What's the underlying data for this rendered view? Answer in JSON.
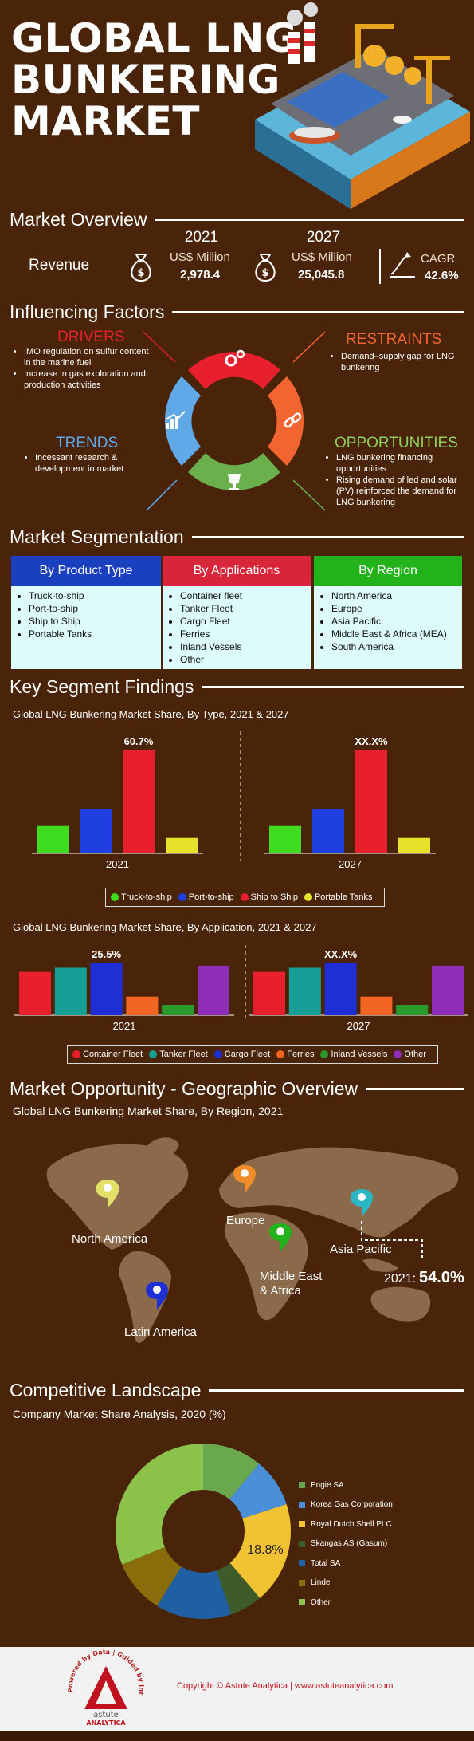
{
  "title_lines": [
    "GLOBAL LNG",
    "BUNKERING",
    "MARKET"
  ],
  "market_overview": {
    "heading": "Market Overview",
    "revenue_label": "Revenue",
    "year_start": "2021",
    "unit_start": "US$ Million",
    "value_start": "2,978.4",
    "year_end": "2027",
    "unit_end": "US$ Million",
    "value_end": "25,045.8",
    "cagr_label": "CAGR",
    "cagr_value": "42.6%"
  },
  "influencing_factors": {
    "heading": "Influencing Factors",
    "drivers": {
      "title": "DRIVERS",
      "items": [
        "IMO regulation on sulfur content in the marine fuel",
        "Increase in gas exploration and production activities"
      ]
    },
    "restraints": {
      "title": "RESTRAINTS",
      "items": [
        "Demand–supply gap for LNG bunkering"
      ]
    },
    "trends": {
      "title": "TRENDS",
      "items": [
        "Incessant research & development in market"
      ]
    },
    "opportunities": {
      "title": "OPPORTUNITIES",
      "items": [
        "LNG bunkering financing opportunities",
        "Rising demand of led and solar (PV) reinforced the demand for LNG bunkering"
      ]
    },
    "colors": {
      "drivers": "#e8202e",
      "restraints": "#f26530",
      "trends": "#5fa9e8",
      "opportunities": "#6ab04c"
    }
  },
  "segmentation": {
    "heading": "Market Segmentation",
    "boxes": [
      {
        "title": "By Product Type",
        "color": "#1a3fbf",
        "items": [
          "Truck-to-ship",
          "Port-to-ship",
          "Ship to Ship",
          "Portable Tanks"
        ]
      },
      {
        "title": "By Applications",
        "color": "#d9253a",
        "items": [
          "Container fleet",
          "Tanker Fleet",
          "Cargo Fleet",
          "Ferries",
          "Inland Vessels",
          "Other"
        ]
      },
      {
        "title": "By Region",
        "color": "#22b31b",
        "items": [
          "North America",
          "Europe",
          "Asia Pacific",
          "Middle East & Africa (MEA)",
          "South America"
        ]
      }
    ]
  },
  "key_findings": {
    "heading": "Key Segment Findings",
    "type_chart_title": "Global LNG Bunkering Market Share, By Type, 2021 & 2027",
    "app_chart_title": "Global LNG Bunkering Market Share, By Application, 2021 & 2027"
  },
  "chart_data": [
    {
      "type": "bar",
      "title": "Global LNG Bunkering Market Share, By Type, 2021 & 2027",
      "categories": [
        "Truck-to-ship",
        "Port-to-ship",
        "Ship to Ship",
        "Portable Tanks"
      ],
      "colors": [
        "#3ddc1e",
        "#1f3fe0",
        "#e8202e",
        "#e6e22e"
      ],
      "groups": [
        {
          "label": "2021",
          "values": [
            16,
            26,
            60.7,
            9
          ],
          "annotation": "60.7%"
        },
        {
          "label": "2027",
          "values": [
            16,
            26,
            60.7,
            9
          ],
          "annotation": "XX.X%"
        }
      ],
      "legend": [
        "Truck-to-ship",
        "Port-to-ship",
        "Ship to Ship",
        "Portable Tanks"
      ]
    },
    {
      "type": "bar",
      "title": "Global LNG Bunkering Market Share, By Application, 2021 & 2027",
      "categories": [
        "Container Fleet",
        "Tanker Fleet",
        "Cargo Fleet",
        "Ferries",
        "Inland Vessels",
        "Other"
      ],
      "colors": [
        "#e8202e",
        "#179e96",
        "#1f2fd6",
        "#f26522",
        "#2a9a2a",
        "#8e2db5"
      ],
      "groups": [
        {
          "label": "2021",
          "values": [
            21,
            23,
            25.5,
            9,
            5,
            24
          ],
          "annotation": "25.5%"
        },
        {
          "label": "2027",
          "values": [
            21,
            23,
            25.5,
            9,
            5,
            24
          ],
          "annotation": "XX.X%"
        }
      ],
      "legend": [
        "Container Fleet",
        "Tanker Fleet",
        "Cargo Fleet",
        "Ferries",
        "Inland Vessels",
        "Other"
      ]
    },
    {
      "type": "pie",
      "title": "Company Market Share Analysis, 2020 (%)",
      "labels": [
        "Engie SA",
        "Korea Gas Corporation",
        "Royal Dutch Shell PLC",
        "Skangas AS (Gasum)",
        "Total SA",
        "Linde",
        "Other"
      ],
      "values": [
        11,
        9,
        18.8,
        6,
        14,
        10,
        31.2
      ],
      "colors": [
        "#6aa84f",
        "#4a90d9",
        "#f1c232",
        "#3d5c2a",
        "#1f5fa3",
        "#8a6d0b",
        "#8bc34a"
      ],
      "annotation": "18.8%"
    }
  ],
  "geo": {
    "heading": "Market Opportunity - Geographic Overview",
    "subtitle": "Global LNG Bunkering Market Share, By Region, 2021",
    "regions": [
      "North America",
      "Europe",
      "Asia Pacific",
      "Middle East & Africa",
      "Latin America"
    ],
    "region_lines": {
      "mea1": "Middle East",
      "mea2": "& Africa"
    },
    "highlight_year": "2021:",
    "highlight_value": "54.0%"
  },
  "competitive": {
    "heading": "Competitive Landscape",
    "subtitle": "Company Market Share Analysis, 2020 (%)"
  },
  "footer": {
    "copyright": "Copyright © Astute Analytica  |  www.astuteanalytica.com",
    "ring_text": "Powered by Data | Guided by Intelligence",
    "brand_top": "astute",
    "brand_bottom": "ANALYTICA"
  }
}
